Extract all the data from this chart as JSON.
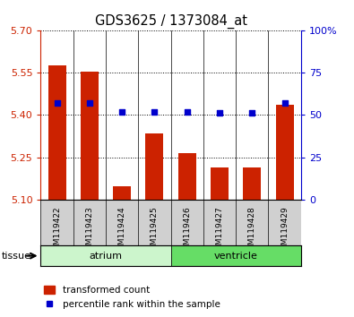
{
  "title": "GDS3625 / 1373084_at",
  "samples": [
    "GSM119422",
    "GSM119423",
    "GSM119424",
    "GSM119425",
    "GSM119426",
    "GSM119427",
    "GSM119428",
    "GSM119429"
  ],
  "red_values": [
    5.575,
    5.553,
    5.148,
    5.335,
    5.265,
    5.215,
    5.215,
    5.435
  ],
  "blue_values": [
    57,
    57,
    52,
    52,
    52,
    51,
    51,
    57
  ],
  "ylim_left": [
    5.1,
    5.7
  ],
  "ylim_right": [
    0,
    100
  ],
  "yticks_left": [
    5.1,
    5.25,
    5.4,
    5.55,
    5.7
  ],
  "yticks_right": [
    0,
    25,
    50,
    75,
    100
  ],
  "yticklabels_right": [
    "0",
    "25",
    "50",
    "75",
    "100%"
  ],
  "tissue_groups": [
    {
      "label": "atrium",
      "start": 0,
      "end": 3,
      "color": "#ccf5cc"
    },
    {
      "label": "ventricle",
      "start": 4,
      "end": 7,
      "color": "#66dd66"
    }
  ],
  "bar_color": "#cc2200",
  "dot_color": "#0000cc",
  "bar_width": 0.55,
  "base_value": 5.1,
  "left_axis_color": "#cc2200",
  "right_axis_color": "#0000cc",
  "legend_red_label": "transformed count",
  "legend_blue_label": "percentile rank within the sample",
  "tissue_label": "tissue",
  "sample_bg_color": "#d0d0d0",
  "plot_bg_color": "#ffffff"
}
